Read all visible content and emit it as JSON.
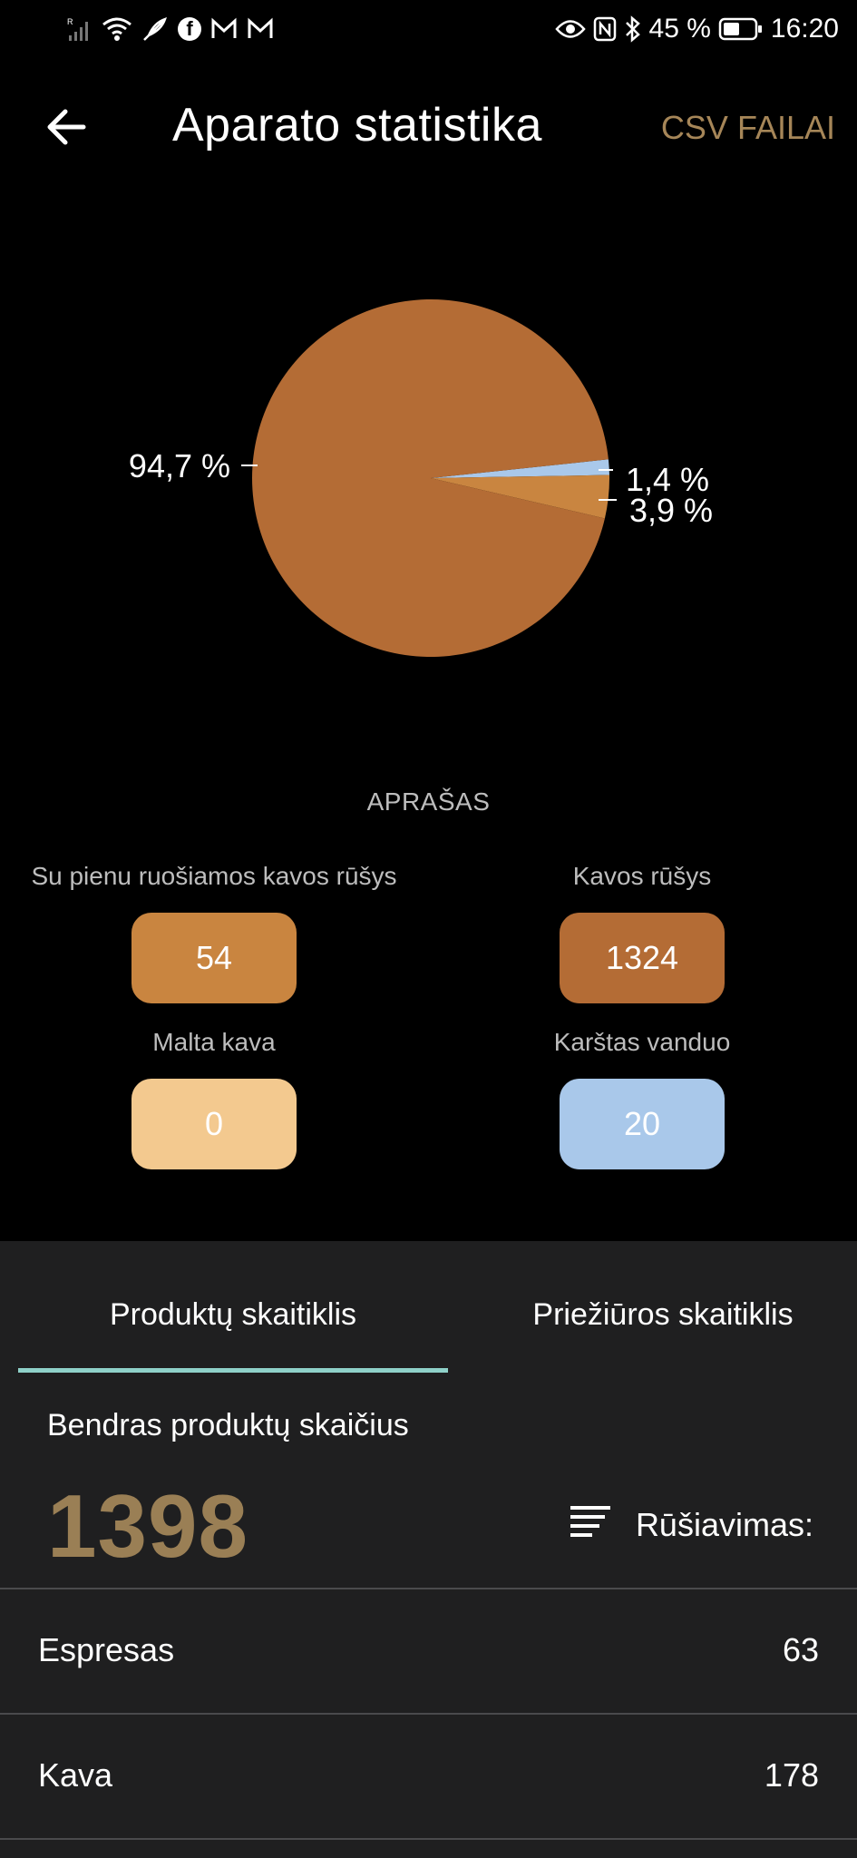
{
  "status_bar": {
    "battery_percent": "45 %",
    "time": "16:20",
    "icons": [
      "signal-icon",
      "wifi-icon",
      "feather-icon",
      "facebook-icon",
      "gmail-icon",
      "gmail-icon",
      "eye-icon",
      "nfc-icon",
      "bluetooth-icon",
      "battery-icon"
    ]
  },
  "app_bar": {
    "back_icon": "arrow-left-icon",
    "title": "Aparato statistika",
    "csv_button": "CSV FAILAI",
    "accent_color": "#a68658"
  },
  "chart_data": {
    "type": "pie",
    "slices": [
      {
        "label": "94,7 %",
        "value": 94.7,
        "color": "#b46c35"
      },
      {
        "label": "3,9 %",
        "value": 3.9,
        "color": "#c98540"
      },
      {
        "label": "1,4 %",
        "value": 1.4,
        "color": "#a9c8ea"
      }
    ]
  },
  "legend": {
    "title": "APRAŠAS",
    "items": [
      {
        "label": "Su pienu ruošiamos kavos rūšys",
        "value": "54",
        "color": "#c98540"
      },
      {
        "label": "Kavos rūšys",
        "value": "1324",
        "color": "#b46c35"
      },
      {
        "label": "Malta kava",
        "value": "0",
        "color": "#f3c98f"
      },
      {
        "label": "Karštas vanduo",
        "value": "20",
        "color": "#a9c8ea"
      }
    ]
  },
  "tabs": {
    "product_counter": "Produktų skaitiklis",
    "maintenance_counter": "Priežiūros skaitiklis",
    "active": "product_counter",
    "underline_color": "#8fd1c9"
  },
  "summary": {
    "total_label": "Bendras produktų skaičius",
    "total_value": "1398",
    "sort_label": "Rūšiavimas:",
    "sort_icon": "sort-icon"
  },
  "rows": [
    {
      "name": "Espresas",
      "value": "63"
    },
    {
      "name": "Kava",
      "value": "178"
    }
  ]
}
